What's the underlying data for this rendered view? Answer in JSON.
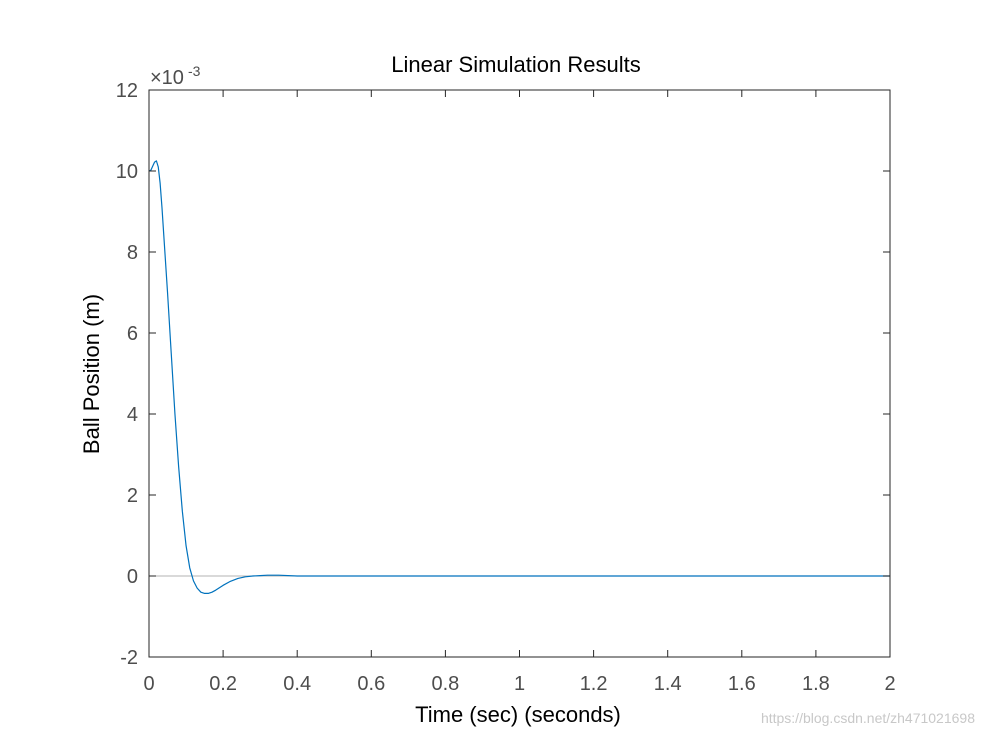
{
  "chart_data": {
    "type": "line",
    "title": "Linear Simulation Results",
    "xlabel": "Time (sec) (seconds)",
    "ylabel": "Ball Position (m)",
    "xlim": [
      0,
      2
    ],
    "ylim": [
      -2,
      12
    ],
    "y_exponent_label": "×10",
    "y_exponent_power": "-3",
    "x_ticks": [
      0,
      0.2,
      0.4,
      0.6,
      0.8,
      1,
      1.2,
      1.4,
      1.6,
      1.8,
      2
    ],
    "x_tick_labels": [
      "0",
      "0.2",
      "0.4",
      "0.6",
      "0.8",
      "1",
      "1.2",
      "1.4",
      "1.6",
      "1.8",
      "2"
    ],
    "y_ticks": [
      -2,
      0,
      2,
      4,
      6,
      8,
      10,
      12
    ],
    "y_tick_labels": [
      "-2",
      "0",
      "2",
      "4",
      "6",
      "8",
      "10",
      "12"
    ],
    "grid": false,
    "reference_line": 0,
    "series": [
      {
        "color": "#0072bd",
        "x": [
          0,
          0.005,
          0.01,
          0.015,
          0.02,
          0.025,
          0.03,
          0.035,
          0.04,
          0.05,
          0.06,
          0.07,
          0.08,
          0.09,
          0.1,
          0.11,
          0.12,
          0.13,
          0.14,
          0.15,
          0.16,
          0.17,
          0.18,
          0.19,
          0.2,
          0.22,
          0.24,
          0.26,
          0.28,
          0.3,
          0.32,
          0.35,
          0.4,
          0.45,
          0.5,
          0.6,
          0.8,
          1.0,
          1.2,
          1.4,
          1.6,
          1.8,
          2.0
        ],
        "y": [
          10.0,
          10.02,
          10.12,
          10.22,
          10.25,
          10.1,
          9.7,
          9.1,
          8.4,
          7.0,
          5.5,
          4.0,
          2.7,
          1.6,
          0.75,
          0.2,
          -0.12,
          -0.3,
          -0.4,
          -0.43,
          -0.43,
          -0.4,
          -0.35,
          -0.29,
          -0.23,
          -0.13,
          -0.06,
          -0.02,
          0.0,
          0.01,
          0.02,
          0.02,
          0.0,
          0.0,
          0.0,
          0.0,
          0.0,
          0.0,
          0.0,
          0.0,
          0.0,
          0.0,
          0.0
        ]
      }
    ],
    "reference_line_color": "#b3b3b3"
  },
  "watermark": "https://blog.csdn.net/zh471021698"
}
